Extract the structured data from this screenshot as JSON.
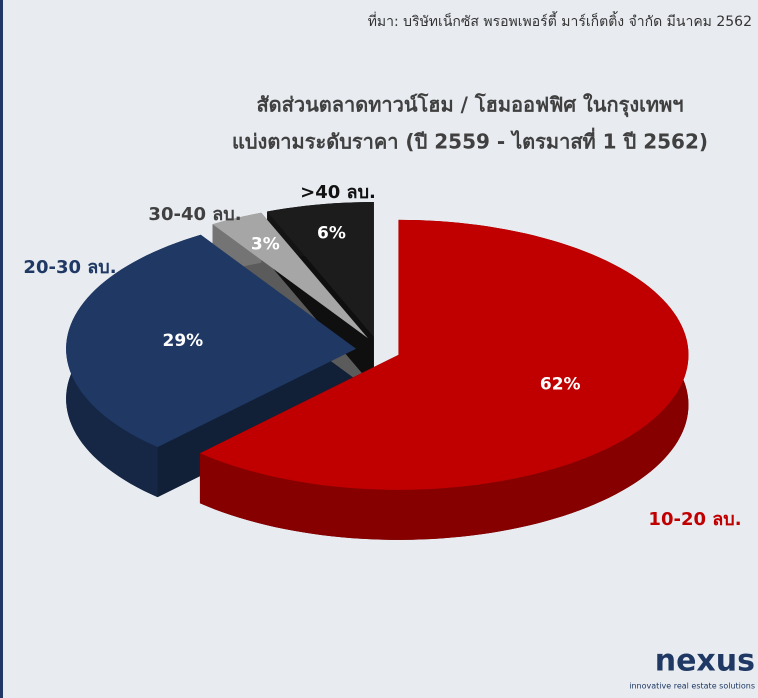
{
  "source": "ที่มา: บริษัทเน็กซัส พรอพเพอร์ตี้ มาร์เก็ตติ้ง จำกัด มีนาคม 2562",
  "chart_data": {
    "type": "pie",
    "title": [
      "สัดส่วนตลาดทาวน์โฮม / โฮมออฟฟิศ ในกรุงเทพฯ",
      "แบ่งตามระดับราคา (ปี 2559 - ไตรมาสที่ 1 ปี 2562)"
    ],
    "categories": [
      "10-20 ลบ.",
      "20-30 ลบ.",
      "30-40 ลบ.",
      ">40 ลบ."
    ],
    "values": [
      62,
      29,
      3,
      6
    ],
    "value_labels": [
      "62%",
      "29%",
      "3%",
      "6%"
    ],
    "colors": [
      "#c00000",
      "#1f3864",
      "#a6a6a6",
      "#1c1c1c"
    ]
  },
  "logo": {
    "name": "nexus",
    "tagline": "innovative real estate solutions"
  }
}
